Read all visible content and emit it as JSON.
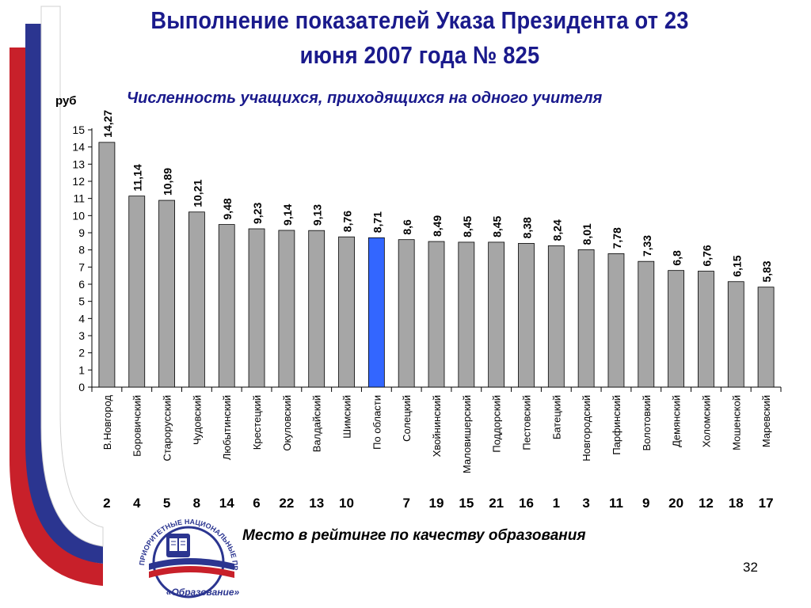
{
  "slide": {
    "title_line1": "Выполнение показателей Указа Президента от 23",
    "title_line2": "июня 2007 года № 825",
    "page_number": "32",
    "ranking_caption": "Место в рейтинге по качеству образования"
  },
  "logo": {
    "arc_text": "ПРИОРИТЕТНЫЕ НАЦИОНАЛЬНЫЕ ПРОЕКТЫ",
    "bottom_text": "«Образование»"
  },
  "colors": {
    "bar": "#a6a6a6",
    "highlight_bar": "#3366ff",
    "title": "#1a1a8c",
    "flag_red": "#c8202a",
    "flag_blue": "#2b3590"
  },
  "chart_data": {
    "type": "bar",
    "title": "Численность учащихся, приходящихся на одного учителя",
    "ylabel": "руб",
    "ylim": [
      0,
      15
    ],
    "yticks": [
      0,
      1,
      2,
      3,
      4,
      5,
      6,
      7,
      8,
      9,
      10,
      11,
      12,
      13,
      14,
      15
    ],
    "grid": false,
    "categories": [
      "В.Новгород",
      "Боровичский",
      "Старорусский",
      "Чудовский",
      "Любытинский",
      "Крестецкий",
      "Окуловский",
      "Валдайский",
      "Шимский",
      "По области",
      "Солецкий",
      "Хвойнинский",
      "Маловишерский",
      "Поддорский",
      "Пестовский",
      "Батецкий",
      "Новгородский",
      "Парфинский",
      "Волотовкий",
      "Демянский",
      "Холомский",
      "Мошенской",
      "Маревский"
    ],
    "values": [
      14.27,
      11.14,
      10.89,
      10.21,
      9.48,
      9.23,
      9.14,
      9.13,
      8.76,
      8.71,
      8.6,
      8.49,
      8.45,
      8.45,
      8.38,
      8.24,
      8.01,
      7.78,
      7.33,
      6.8,
      6.76,
      6.15,
      5.83
    ],
    "value_labels": [
      "14,27",
      "11,14",
      "10,89",
      "10,21",
      "9,48",
      "9,23",
      "9,14",
      "9,13",
      "8,76",
      "8,71",
      "8,6",
      "8,49",
      "8,45",
      "8,45",
      "8,38",
      "8,24",
      "8,01",
      "7,78",
      "7,33",
      "6,8",
      "6,76",
      "6,15",
      "5,83"
    ],
    "highlight_category": "По области",
    "ranks": [
      "2",
      "4",
      "5",
      "8",
      "14",
      "6",
      "22",
      "13",
      "10",
      "",
      "7",
      "19",
      "15",
      "21",
      "16",
      "1",
      "3",
      "11",
      "9",
      "20",
      "12",
      "18",
      "17"
    ]
  }
}
